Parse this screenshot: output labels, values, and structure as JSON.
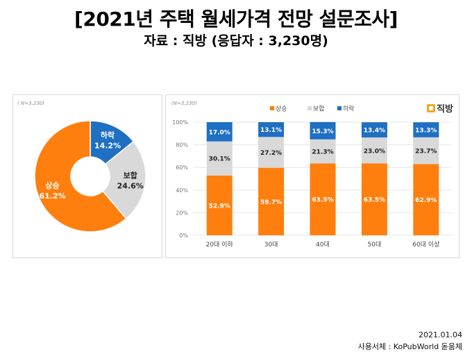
{
  "title": "[2021년 주택 월세가격 전망 설문조사]",
  "subtitle": "자료 : 직방 (응답자 : 3,230명)",
  "logo": {
    "label": "직방",
    "icon": "house-icon",
    "color": "#f5a623"
  },
  "footer": {
    "date": "2021.01.04",
    "font_credit": "사용서체 : KoPubWorld 돋움체"
  },
  "colors": {
    "rise": "#ff7f0e",
    "hold": "#d9d9d9",
    "fall": "#1f6fc2"
  },
  "chart_data": [
    {
      "type": "pie",
      "note": "( N=3,230)",
      "slices": [
        {
          "label": "하락",
          "value": 14.2,
          "value_label": "14.2%",
          "color": "#1f6fc2"
        },
        {
          "label": "보합",
          "value": 24.6,
          "value_label": "24.6%",
          "color": "#d9d9d9"
        },
        {
          "label": "상승",
          "value": 61.2,
          "value_label": "61.2%",
          "color": "#ff7f0e"
        }
      ]
    },
    {
      "type": "bar",
      "stacked": true,
      "note": "(N=3,230)",
      "categories": [
        "20대 이하",
        "30대",
        "40대",
        "50대",
        "60대 이상"
      ],
      "yticks": [
        "0%",
        "20%",
        "40%",
        "60%",
        "80%",
        "100%"
      ],
      "ylim": [
        0,
        100
      ],
      "legend_position": "top",
      "series": [
        {
          "name": "상승",
          "color": "#ff7f0e",
          "values": [
            52.9,
            59.7,
            63.5,
            63.5,
            62.9
          ],
          "labels": [
            "52.9%",
            "59.7%",
            "63.5%",
            "63.5%",
            "62.9%"
          ]
        },
        {
          "name": "보합",
          "color": "#d9d9d9",
          "values": [
            30.1,
            27.2,
            21.3,
            23.0,
            23.7
          ],
          "labels": [
            "30.1%",
            "27.2%",
            "21.3%",
            "23.0%",
            "23.7%"
          ]
        },
        {
          "name": "하락",
          "color": "#1f6fc2",
          "values": [
            17.0,
            13.1,
            15.3,
            13.4,
            13.3
          ],
          "labels": [
            "17.0%",
            "13.1%",
            "15.3%",
            "13.4%",
            "13.3%"
          ]
        }
      ]
    }
  ]
}
